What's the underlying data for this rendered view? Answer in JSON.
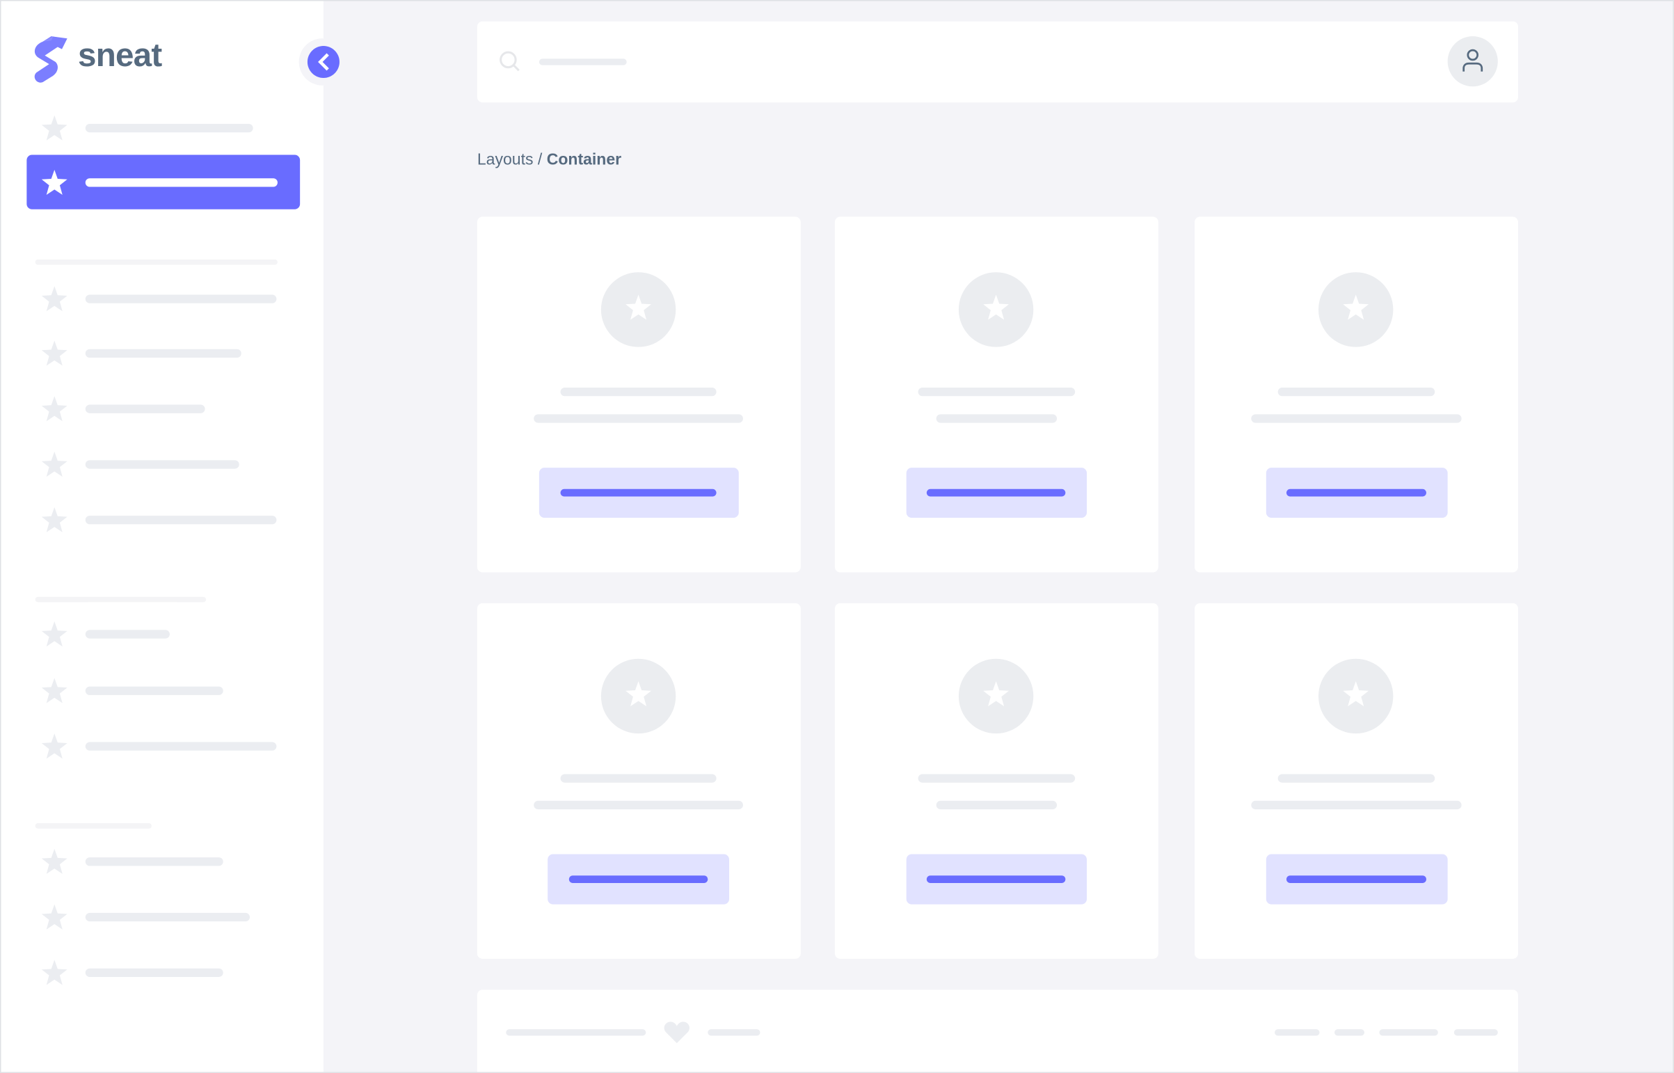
{
  "brand": {
    "name": "sneat",
    "color": "#696cff"
  },
  "colors": {
    "accent": "#696cff",
    "accent_light": "#e1e2ff",
    "text": "#566a7f",
    "placeholder": "#ebedf1",
    "background": "#f4f4f8"
  },
  "sidebar": {
    "collapse_icon": "chevron-left-icon",
    "active_index": 1,
    "item_icon": "star-icon"
  },
  "header": {
    "search_icon": "search-icon",
    "avatar_icon": "user-icon"
  },
  "breadcrumb": {
    "parent": "Layouts",
    "separator": "/",
    "current": "Container"
  },
  "footer": {
    "icon": "heart-icon"
  }
}
